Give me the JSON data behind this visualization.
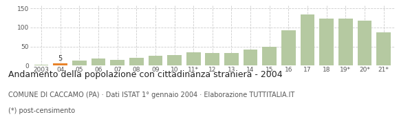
{
  "categories": [
    "2003",
    "04",
    "05",
    "06",
    "07",
    "08",
    "09",
    "10",
    "11*",
    "12",
    "13",
    "14",
    "15",
    "16",
    "17",
    "18",
    "19*",
    "20*",
    "21*"
  ],
  "values": [
    2,
    5,
    13,
    18,
    15,
    20,
    26,
    27,
    35,
    33,
    33,
    42,
    50,
    92,
    135,
    123,
    123,
    118,
    87
  ],
  "bar_colors": [
    "#b5c9a1",
    "#e8832a",
    "#b5c9a1",
    "#b5c9a1",
    "#b5c9a1",
    "#b5c9a1",
    "#b5c9a1",
    "#b5c9a1",
    "#b5c9a1",
    "#b5c9a1",
    "#b5c9a1",
    "#b5c9a1",
    "#b5c9a1",
    "#b5c9a1",
    "#b5c9a1",
    "#b5c9a1",
    "#b5c9a1",
    "#b5c9a1",
    "#b5c9a1"
  ],
  "highlighted_bar_index": 1,
  "highlighted_label": "5",
  "ylim": [
    0,
    160
  ],
  "yticks": [
    0,
    50,
    100,
    150
  ],
  "title": "Andamento della popolazione con cittadinanza straniera - 2004",
  "subtitle": "COMUNE DI CACCAMO (PA) · Dati ISTAT 1° gennaio 2004 · Elaborazione TUTTITALIA.IT",
  "footnote": "(*) post-censimento",
  "background_color": "#ffffff",
  "grid_color": "#cccccc",
  "title_fontsize": 9.0,
  "subtitle_fontsize": 7.0,
  "footnote_fontsize": 7.0,
  "tick_fontsize": 6.5,
  "label_fontsize": 7.0
}
